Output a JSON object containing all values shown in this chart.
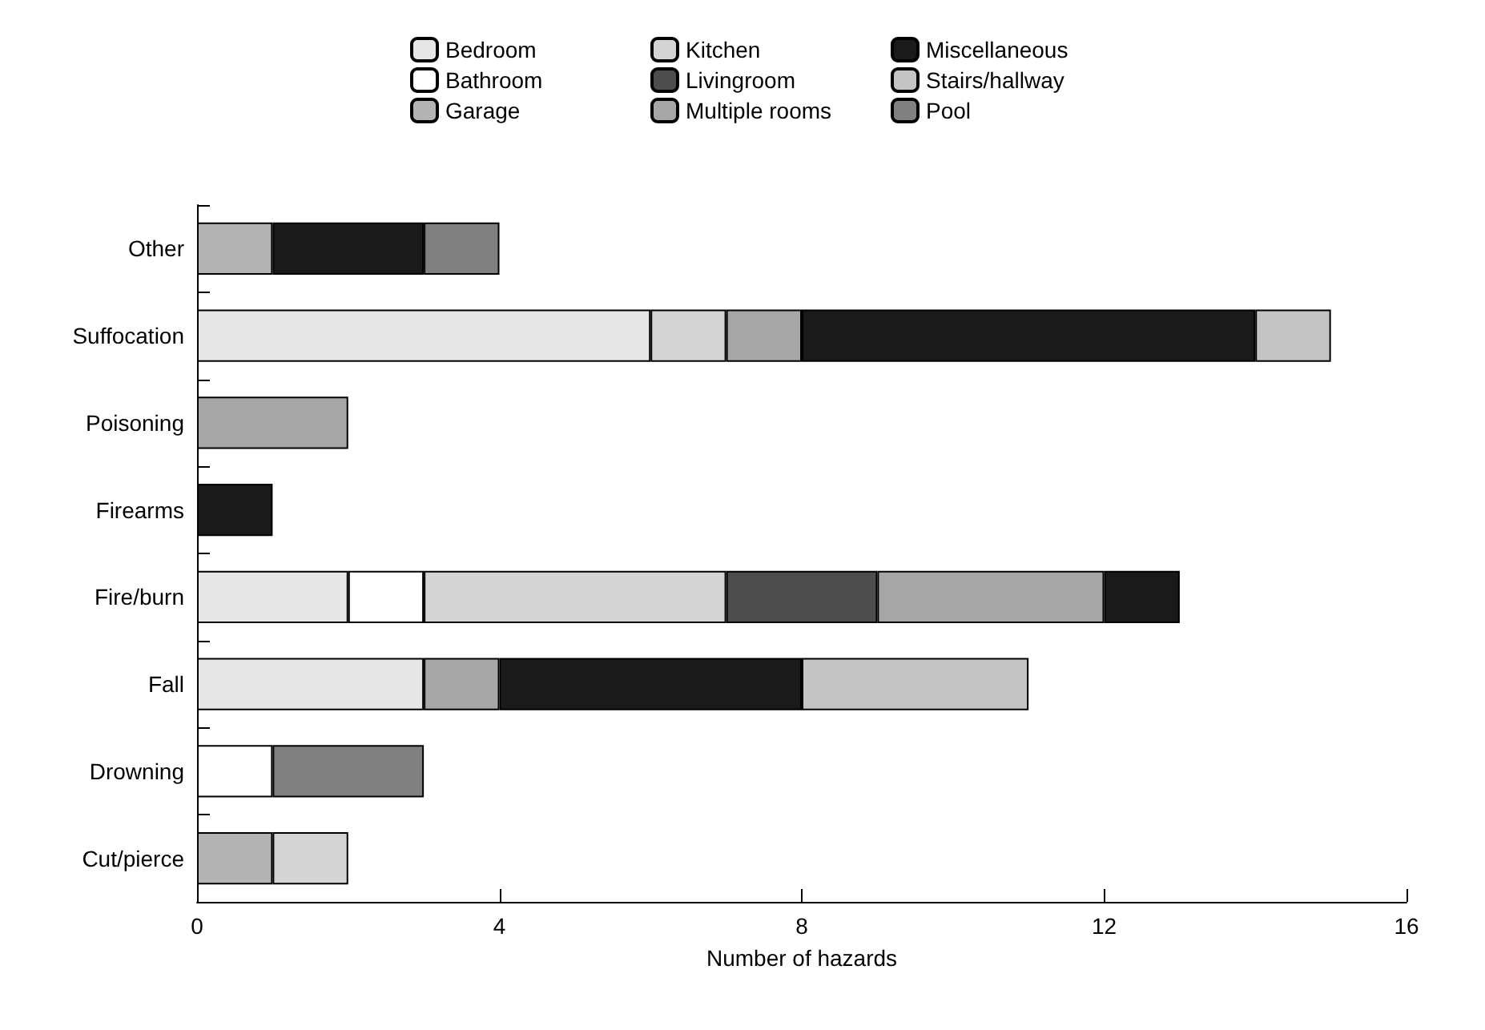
{
  "chart_data": {
    "type": "bar",
    "orientation": "horizontal",
    "stacked": true,
    "xlabel": "Number of hazards",
    "categories": [
      "Other",
      "Suffocation",
      "Poisoning",
      "Firearms",
      "Fire/burn",
      "Fall",
      "Drowning",
      "Cut/pierce"
    ],
    "series": [
      {
        "name": "Bedroom",
        "color": "#e6e6e6",
        "values": [
          null,
          6,
          null,
          null,
          2,
          3,
          null,
          null
        ]
      },
      {
        "name": "Bathroom",
        "color": "#ffffff",
        "values": [
          null,
          null,
          null,
          null,
          1,
          null,
          1,
          null
        ]
      },
      {
        "name": "Garage",
        "color": "#b3b3b3",
        "values": [
          1,
          null,
          null,
          null,
          null,
          null,
          null,
          1
        ]
      },
      {
        "name": "Kitchen",
        "color": "#d4d4d4",
        "values": [
          null,
          1,
          null,
          null,
          4,
          null,
          null,
          1
        ]
      },
      {
        "name": "Livingroom",
        "color": "#4d4d4d",
        "values": [
          null,
          null,
          null,
          null,
          2,
          null,
          null,
          null
        ]
      },
      {
        "name": "Multiple rooms",
        "color": "#a6a6a6",
        "values": [
          null,
          1,
          2,
          null,
          3,
          1,
          null,
          null
        ]
      },
      {
        "name": "Miscellaneous",
        "color": "#1a1a1a",
        "values": [
          2,
          6,
          null,
          1,
          1,
          4,
          null,
          null
        ]
      },
      {
        "name": "Stairs/hallway",
        "color": "#c4c4c4",
        "values": [
          null,
          1,
          null,
          null,
          null,
          3,
          null,
          null
        ]
      },
      {
        "name": "Pool",
        "color": "#808080",
        "values": [
          1,
          null,
          null,
          null,
          null,
          null,
          2,
          null
        ]
      }
    ],
    "xlim": [
      0,
      16
    ],
    "xticks": [
      0,
      4,
      8,
      12,
      16
    ],
    "grid": false,
    "legend": "top"
  }
}
